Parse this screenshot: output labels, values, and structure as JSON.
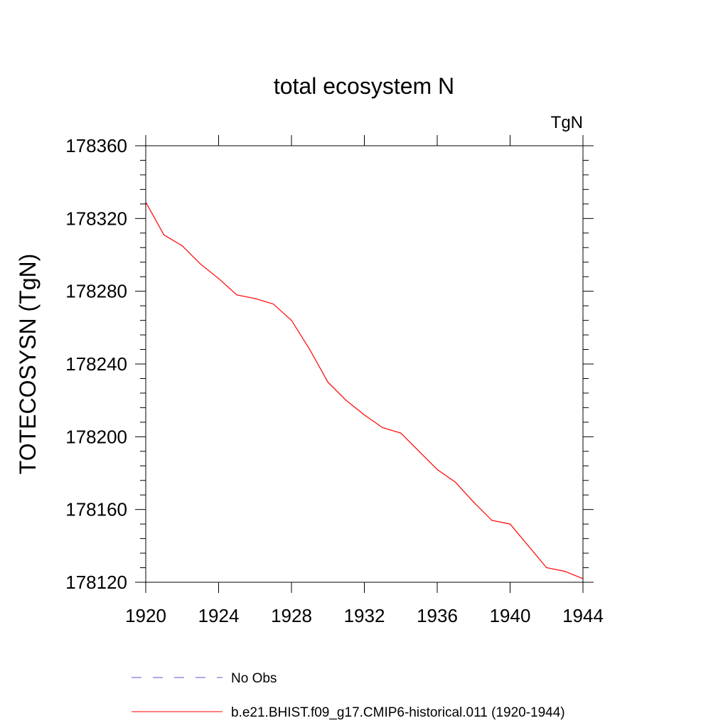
{
  "chart_data": {
    "type": "line",
    "title": "total ecosystem N",
    "units_label": "TgN",
    "xlabel": "",
    "ylabel": "TOTECOSYSN  (TgN)",
    "xlim": [
      1920,
      1944
    ],
    "ylim": [
      178120,
      178360
    ],
    "xticks": [
      1920,
      1924,
      1928,
      1932,
      1936,
      1940,
      1944
    ],
    "yticks": [
      178120,
      178160,
      178200,
      178240,
      178280,
      178320,
      178360
    ],
    "grid": false,
    "legend_position": "bottom",
    "legend": [
      {
        "name": "No Obs",
        "color": "#5a5ac8",
        "style": "dashed"
      },
      {
        "name": "b.e21.BHIST.f09_g17.CMIP6-historical.011 (1920-1944)",
        "color": "#ff0000",
        "style": "solid"
      }
    ],
    "series": [
      {
        "name": "b.e21.BHIST.f09_g17.CMIP6-historical.011 (1920-1944)",
        "color": "#ff0000",
        "x": [
          1920,
          1921,
          1922,
          1923,
          1924,
          1925,
          1926,
          1927,
          1928,
          1929,
          1930,
          1931,
          1932,
          1933,
          1934,
          1935,
          1936,
          1937,
          1938,
          1939,
          1940,
          1941,
          1942,
          1943,
          1944
        ],
        "values": [
          178329,
          178311,
          178305,
          178295,
          178287,
          178278,
          178276,
          178273,
          178264,
          178248,
          178230,
          178220,
          178212,
          178205,
          178202,
          178192,
          178182,
          178175,
          178164,
          178154,
          178152,
          178140,
          178128,
          178126,
          178122
        ]
      }
    ]
  }
}
